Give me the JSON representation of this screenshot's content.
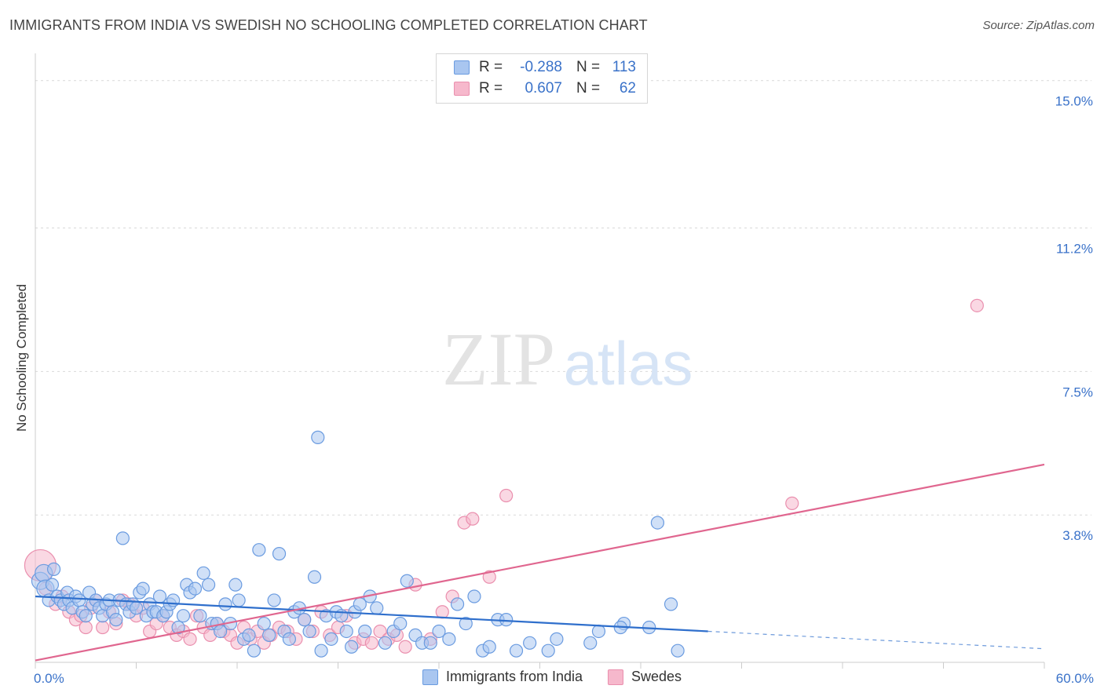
{
  "title": "IMMIGRANTS FROM INDIA VS SWEDISH NO SCHOOLING COMPLETED CORRELATION CHART",
  "source": "Source: ZipAtlas.com",
  "watermark": {
    "zip": "ZIP",
    "atlas": "atlas"
  },
  "legend": {
    "series1": {
      "r_label": "R =",
      "r_value": "-0.288",
      "n_label": "N =",
      "n_value": "113",
      "fill": "#a9c6f0",
      "stroke": "#6a9be0"
    },
    "series2": {
      "r_label": "R =",
      "r_value": "0.607",
      "n_label": "N =",
      "n_value": "62",
      "fill": "#f6b8cc",
      "stroke": "#ea8fae"
    }
  },
  "bottom_legend": {
    "series1": "Immigrants from India",
    "series2": "Swedes"
  },
  "chart_data": {
    "type": "scatter",
    "title": "IMMIGRANTS FROM INDIA VS SWEDISH NO SCHOOLING COMPLETED CORRELATION CHART",
    "xlabel": "",
    "ylabel": "No Schooling Completed",
    "xlim": [
      0,
      60
    ],
    "ylim": [
      0,
      15.5
    ],
    "x_tick_labels": [
      "0.0%",
      "60.0%"
    ],
    "y_ticks": [
      3.8,
      7.5,
      11.2,
      15.0
    ],
    "y_tick_labels": [
      "3.8%",
      "7.5%",
      "11.2%",
      "15.0%"
    ],
    "colors": {
      "india": "#6a9be0",
      "india_fill": "#a9c6f0",
      "india_line": "#2f6fcc",
      "swedes": "#ea8fae",
      "swedes_fill": "#f6b8cc",
      "swedes_line": "#e0668f"
    },
    "series": [
      {
        "name": "Immigrants from India",
        "trend": {
          "x0": 0,
          "y0": 1.7,
          "x1": 40,
          "y1": 0.8,
          "dashed_to_x": 60,
          "dashed_to_y": 0.35
        },
        "points": [
          [
            0.3,
            2.1
          ],
          [
            0.5,
            2.3
          ],
          [
            0.6,
            1.9
          ],
          [
            0.8,
            1.6
          ],
          [
            1.0,
            2.0
          ],
          [
            1.1,
            2.4
          ],
          [
            1.3,
            1.7
          ],
          [
            1.5,
            1.6
          ],
          [
            1.7,
            1.5
          ],
          [
            1.9,
            1.8
          ],
          [
            2.0,
            1.6
          ],
          [
            2.2,
            1.4
          ],
          [
            2.4,
            1.7
          ],
          [
            2.6,
            1.6
          ],
          [
            2.8,
            1.3
          ],
          [
            3.0,
            1.2
          ],
          [
            3.2,
            1.8
          ],
          [
            3.4,
            1.5
          ],
          [
            3.6,
            1.6
          ],
          [
            3.8,
            1.4
          ],
          [
            4.0,
            1.2
          ],
          [
            4.2,
            1.5
          ],
          [
            4.4,
            1.6
          ],
          [
            4.6,
            1.3
          ],
          [
            4.8,
            1.1
          ],
          [
            5.0,
            1.6
          ],
          [
            5.2,
            3.2
          ],
          [
            5.4,
            1.5
          ],
          [
            5.6,
            1.3
          ],
          [
            5.8,
            1.5
          ],
          [
            6.0,
            1.4
          ],
          [
            6.2,
            1.8
          ],
          [
            6.4,
            1.9
          ],
          [
            6.6,
            1.2
          ],
          [
            6.8,
            1.5
          ],
          [
            7.0,
            1.3
          ],
          [
            7.2,
            1.3
          ],
          [
            7.4,
            1.7
          ],
          [
            7.6,
            1.2
          ],
          [
            7.8,
            1.3
          ],
          [
            8.0,
            1.5
          ],
          [
            8.2,
            1.6
          ],
          [
            8.5,
            0.9
          ],
          [
            8.8,
            1.2
          ],
          [
            9.0,
            2.0
          ],
          [
            9.2,
            1.8
          ],
          [
            9.5,
            1.9
          ],
          [
            9.8,
            1.2
          ],
          [
            10.0,
            2.3
          ],
          [
            10.3,
            2.0
          ],
          [
            10.5,
            1.0
          ],
          [
            10.8,
            1.0
          ],
          [
            11.0,
            0.8
          ],
          [
            11.3,
            1.5
          ],
          [
            11.6,
            1.0
          ],
          [
            11.9,
            2.0
          ],
          [
            12.1,
            1.6
          ],
          [
            12.4,
            0.6
          ],
          [
            12.7,
            0.7
          ],
          [
            13.0,
            0.3
          ],
          [
            13.3,
            2.9
          ],
          [
            13.6,
            1.0
          ],
          [
            13.9,
            0.7
          ],
          [
            14.2,
            1.6
          ],
          [
            14.5,
            2.8
          ],
          [
            14.8,
            0.8
          ],
          [
            15.1,
            0.6
          ],
          [
            15.4,
            1.3
          ],
          [
            15.7,
            1.4
          ],
          [
            16.0,
            1.1
          ],
          [
            16.3,
            0.8
          ],
          [
            16.6,
            2.2
          ],
          [
            16.8,
            5.8
          ],
          [
            17.0,
            0.3
          ],
          [
            17.3,
            1.2
          ],
          [
            17.6,
            0.6
          ],
          [
            17.9,
            1.3
          ],
          [
            18.2,
            1.2
          ],
          [
            18.5,
            0.8
          ],
          [
            18.8,
            0.4
          ],
          [
            19.0,
            1.3
          ],
          [
            19.3,
            1.5
          ],
          [
            19.6,
            0.8
          ],
          [
            19.9,
            1.7
          ],
          [
            20.3,
            1.4
          ],
          [
            20.8,
            0.5
          ],
          [
            21.3,
            0.8
          ],
          [
            21.7,
            1.0
          ],
          [
            22.1,
            2.1
          ],
          [
            22.6,
            0.7
          ],
          [
            23.0,
            0.5
          ],
          [
            23.5,
            0.5
          ],
          [
            24.0,
            0.8
          ],
          [
            24.6,
            0.6
          ],
          [
            25.1,
            1.5
          ],
          [
            25.6,
            1.0
          ],
          [
            26.1,
            1.7
          ],
          [
            26.6,
            0.3
          ],
          [
            27.0,
            0.4
          ],
          [
            27.5,
            1.1
          ],
          [
            28.0,
            1.1
          ],
          [
            28.6,
            0.3
          ],
          [
            29.4,
            0.5
          ],
          [
            30.5,
            0.3
          ],
          [
            31.0,
            0.6
          ],
          [
            33.5,
            0.8
          ],
          [
            35.0,
            1.0
          ],
          [
            36.5,
            0.9
          ],
          [
            37.0,
            3.6
          ],
          [
            37.8,
            1.5
          ],
          [
            38.2,
            0.3
          ],
          [
            34.8,
            0.9
          ],
          [
            33.0,
            0.5
          ]
        ]
      },
      {
        "name": "Swedes",
        "trend": {
          "x0": 0,
          "y0": 0.05,
          "x1": 60,
          "y1": 5.1
        },
        "points": [
          [
            0.3,
            2.5
          ],
          [
            0.6,
            1.9
          ],
          [
            1.2,
            1.5
          ],
          [
            1.6,
            1.7
          ],
          [
            2.0,
            1.3
          ],
          [
            2.4,
            1.1
          ],
          [
            2.7,
            1.2
          ],
          [
            3.0,
            0.9
          ],
          [
            3.3,
            1.4
          ],
          [
            3.6,
            1.6
          ],
          [
            4.0,
            0.9
          ],
          [
            4.4,
            1.3
          ],
          [
            4.8,
            1.0
          ],
          [
            5.2,
            1.6
          ],
          [
            5.6,
            1.5
          ],
          [
            6.0,
            1.2
          ],
          [
            6.4,
            1.4
          ],
          [
            6.8,
            0.8
          ],
          [
            7.2,
            1.0
          ],
          [
            7.6,
            1.2
          ],
          [
            8.0,
            0.9
          ],
          [
            8.4,
            0.7
          ],
          [
            8.8,
            0.8
          ],
          [
            9.2,
            0.6
          ],
          [
            9.6,
            1.2
          ],
          [
            10.0,
            0.9
          ],
          [
            10.4,
            0.7
          ],
          [
            10.8,
            1.0
          ],
          [
            11.2,
            0.8
          ],
          [
            11.6,
            0.7
          ],
          [
            12.0,
            0.5
          ],
          [
            12.4,
            0.9
          ],
          [
            12.8,
            0.6
          ],
          [
            13.2,
            0.8
          ],
          [
            13.6,
            0.5
          ],
          [
            14.0,
            0.7
          ],
          [
            14.5,
            0.9
          ],
          [
            15.0,
            0.8
          ],
          [
            15.5,
            0.6
          ],
          [
            16.0,
            1.1
          ],
          [
            16.5,
            0.8
          ],
          [
            17.0,
            1.3
          ],
          [
            17.5,
            0.7
          ],
          [
            18.0,
            0.9
          ],
          [
            18.5,
            1.2
          ],
          [
            19.0,
            0.5
          ],
          [
            19.5,
            0.6
          ],
          [
            20.0,
            0.5
          ],
          [
            20.5,
            0.8
          ],
          [
            21.0,
            0.6
          ],
          [
            21.5,
            0.7
          ],
          [
            22.0,
            0.4
          ],
          [
            22.6,
            2.0
          ],
          [
            23.5,
            0.6
          ],
          [
            24.2,
            1.3
          ],
          [
            24.8,
            1.7
          ],
          [
            25.5,
            3.6
          ],
          [
            26.0,
            3.7
          ],
          [
            27.0,
            2.2
          ],
          [
            28.0,
            4.3
          ],
          [
            45.0,
            4.1
          ],
          [
            56.0,
            9.2
          ]
        ]
      }
    ]
  }
}
